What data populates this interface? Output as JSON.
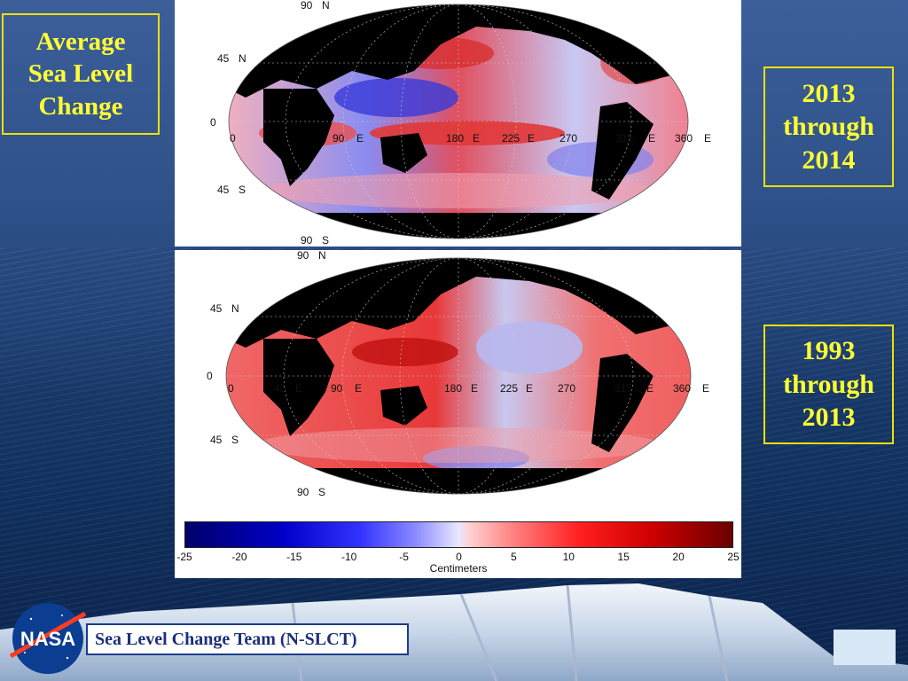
{
  "title": [
    "Average",
    "Sea Level",
    "Change"
  ],
  "period_top": [
    "2013",
    "through",
    "2014"
  ],
  "period_bottom": [
    "1993",
    "through",
    "2013"
  ],
  "map_top": {
    "lat_labels": [
      "90",
      "45",
      "0",
      "45",
      "90"
    ],
    "lat_letters": [
      "N",
      "N",
      "",
      "S",
      "S"
    ],
    "lon_labels": [
      "0",
      "90",
      "180",
      "225",
      "270",
      "315",
      "360"
    ],
    "lon_letters": [
      "",
      "E",
      "E",
      "E",
      "",
      "E",
      "E"
    ]
  },
  "map_bottom": {
    "lat_labels": [
      "90",
      "45",
      "0",
      "45",
      "90"
    ],
    "lat_letters": [
      "N",
      "N",
      "",
      "S",
      "S"
    ],
    "lon_labels": [
      "0",
      "45",
      "90",
      "180",
      "225",
      "270",
      "315",
      "360"
    ],
    "lon_letters": [
      "",
      "E",
      "E",
      "E",
      "E",
      "",
      "E",
      "E"
    ]
  },
  "colorbar": {
    "ticks": [
      "-25",
      "-20",
      "-15",
      "-10",
      "-5",
      "0",
      "5",
      "10",
      "15",
      "20",
      "25"
    ],
    "range": [
      -25,
      25
    ],
    "unit": "Centimeters",
    "colors": {
      "min": "#00006a",
      "mid": "#ffffff",
      "max": "#6a0000"
    }
  },
  "footer": {
    "logo_text": "NASA",
    "team": "Sea Level Change Team (N-SLCT)"
  },
  "colors": {
    "label_text": "#ffff33",
    "label_border": "#f0e000",
    "land": "#000000"
  }
}
